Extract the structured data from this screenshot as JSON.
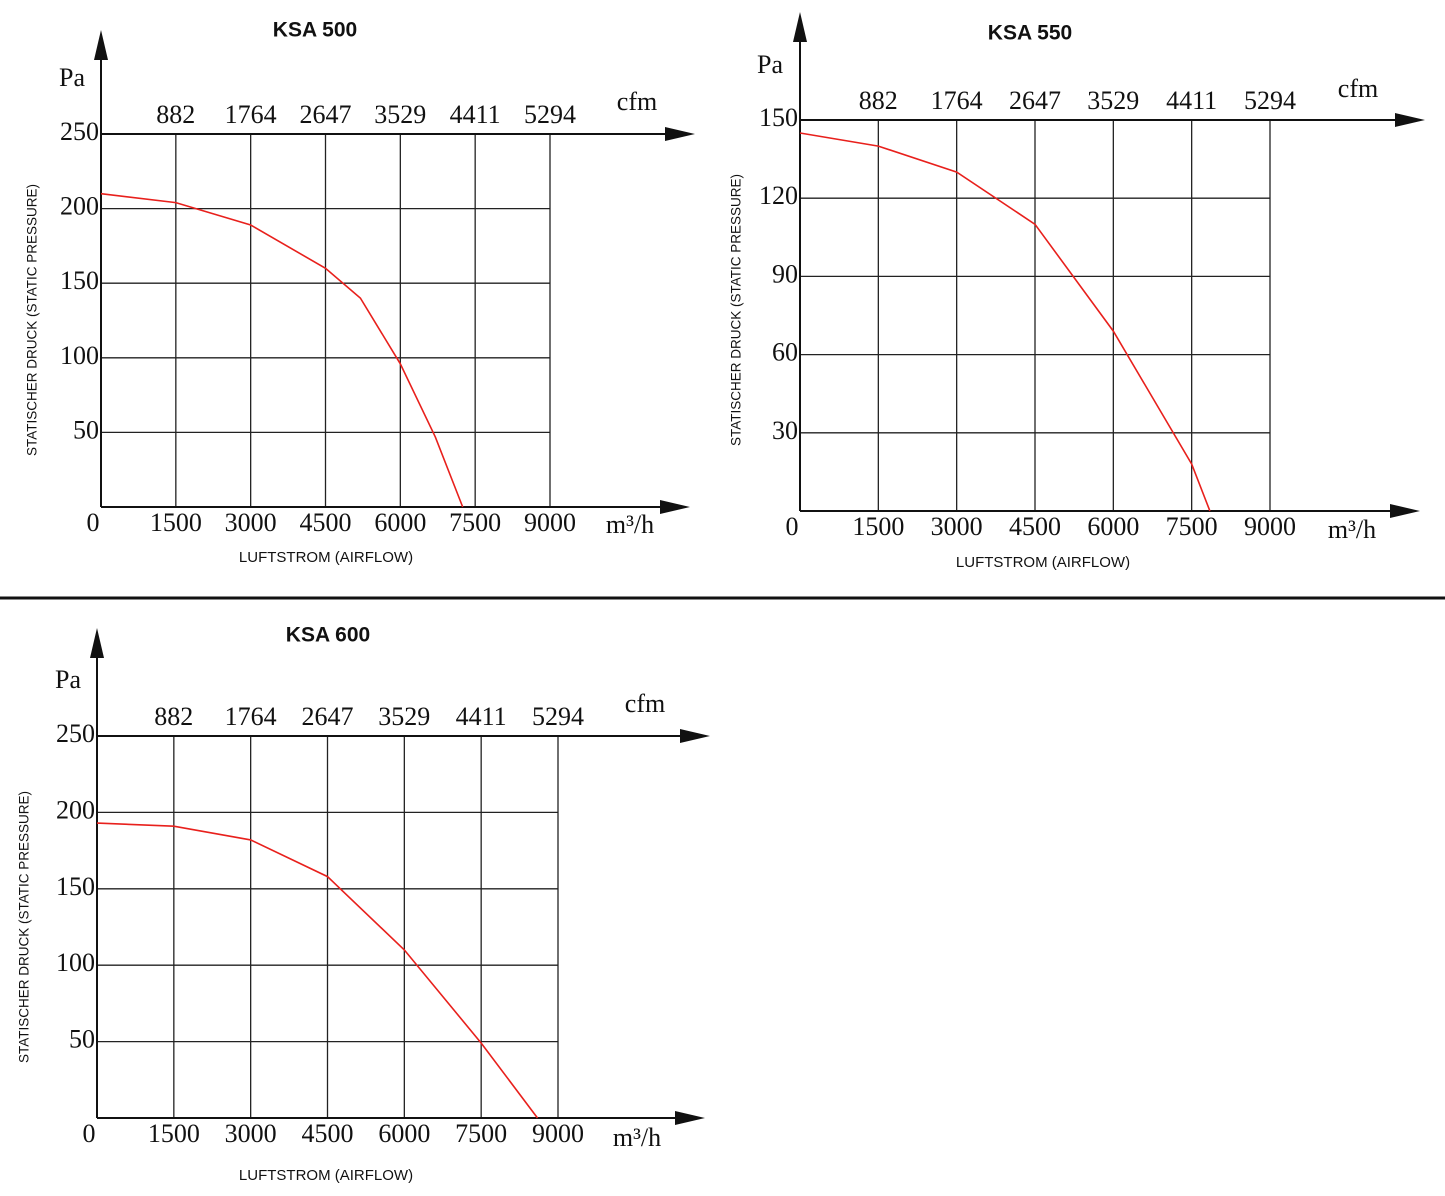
{
  "chart_data": [
    {
      "type": "line",
      "title": "KSA 500",
      "x_label": "LUFTSTROM (AIRFLOW)",
      "y_label": "STATISCHER DRUCK (STATIC PRESSURE)",
      "y_unit": "Pa",
      "x_unit": "m³/h",
      "x2_unit": "cfm",
      "xlim": [
        0,
        9000
      ],
      "xticks": [
        0,
        1500,
        3000,
        4500,
        6000,
        7500,
        9000
      ],
      "x2lim": [
        0,
        5294
      ],
      "x2ticks": [
        882,
        1764,
        2647,
        3529,
        4411,
        5294
      ],
      "ylim": [
        0,
        250
      ],
      "yticks": [
        50,
        100,
        150,
        200,
        250
      ],
      "grid": true,
      "x": [
        0,
        1500,
        3000,
        4500,
        5200,
        6000,
        6700,
        7250
      ],
      "series": [
        {
          "color": "#e8201c",
          "values": [
            210,
            204,
            189,
            160,
            140,
            96,
            47,
            0
          ]
        }
      ]
    },
    {
      "type": "line",
      "title": "KSA 550",
      "x_label": "LUFTSTROM (AIRFLOW)",
      "y_label": "STATISCHER DRUCK (STATIC PRESSURE)",
      "y_unit": "Pa",
      "x_unit": "m³/h",
      "x2_unit": "cfm",
      "xlim": [
        0,
        9000
      ],
      "xticks": [
        0,
        1500,
        3000,
        4500,
        6000,
        7500,
        9000
      ],
      "x2lim": [
        0,
        5294
      ],
      "x2ticks": [
        882,
        1764,
        2647,
        3529,
        4411,
        5294
      ],
      "ylim": [
        0,
        150
      ],
      "yticks": [
        30,
        60,
        90,
        120,
        150
      ],
      "grid": true,
      "x": [
        0,
        1500,
        3000,
        4500,
        6000,
        7500,
        7850
      ],
      "series": [
        {
          "color": "#e8201c",
          "values": [
            145,
            140,
            130,
            110,
            69,
            18,
            0
          ]
        }
      ]
    },
    {
      "type": "line",
      "title": "KSA 600",
      "x_label": "LUFTSTROM (AIRFLOW)",
      "y_label": "STATISCHER DRUCK (STATIC PRESSURE)",
      "y_unit": "Pa",
      "x_unit": "m³/h",
      "x2_unit": "cfm",
      "xlim": [
        0,
        9000
      ],
      "xticks": [
        0,
        1500,
        3000,
        4500,
        6000,
        7500,
        9000
      ],
      "x2lim": [
        0,
        5294
      ],
      "x2ticks": [
        882,
        1764,
        2647,
        3529,
        4411,
        5294
      ],
      "ylim": [
        0,
        250
      ],
      "yticks": [
        50,
        100,
        150,
        200,
        250
      ],
      "grid": true,
      "x": [
        0,
        1500,
        3000,
        4500,
        6000,
        7500,
        8600
      ],
      "series": [
        {
          "color": "#e8201c",
          "values": [
            193,
            191,
            182,
            158,
            110,
            49,
            0
          ]
        }
      ]
    }
  ]
}
